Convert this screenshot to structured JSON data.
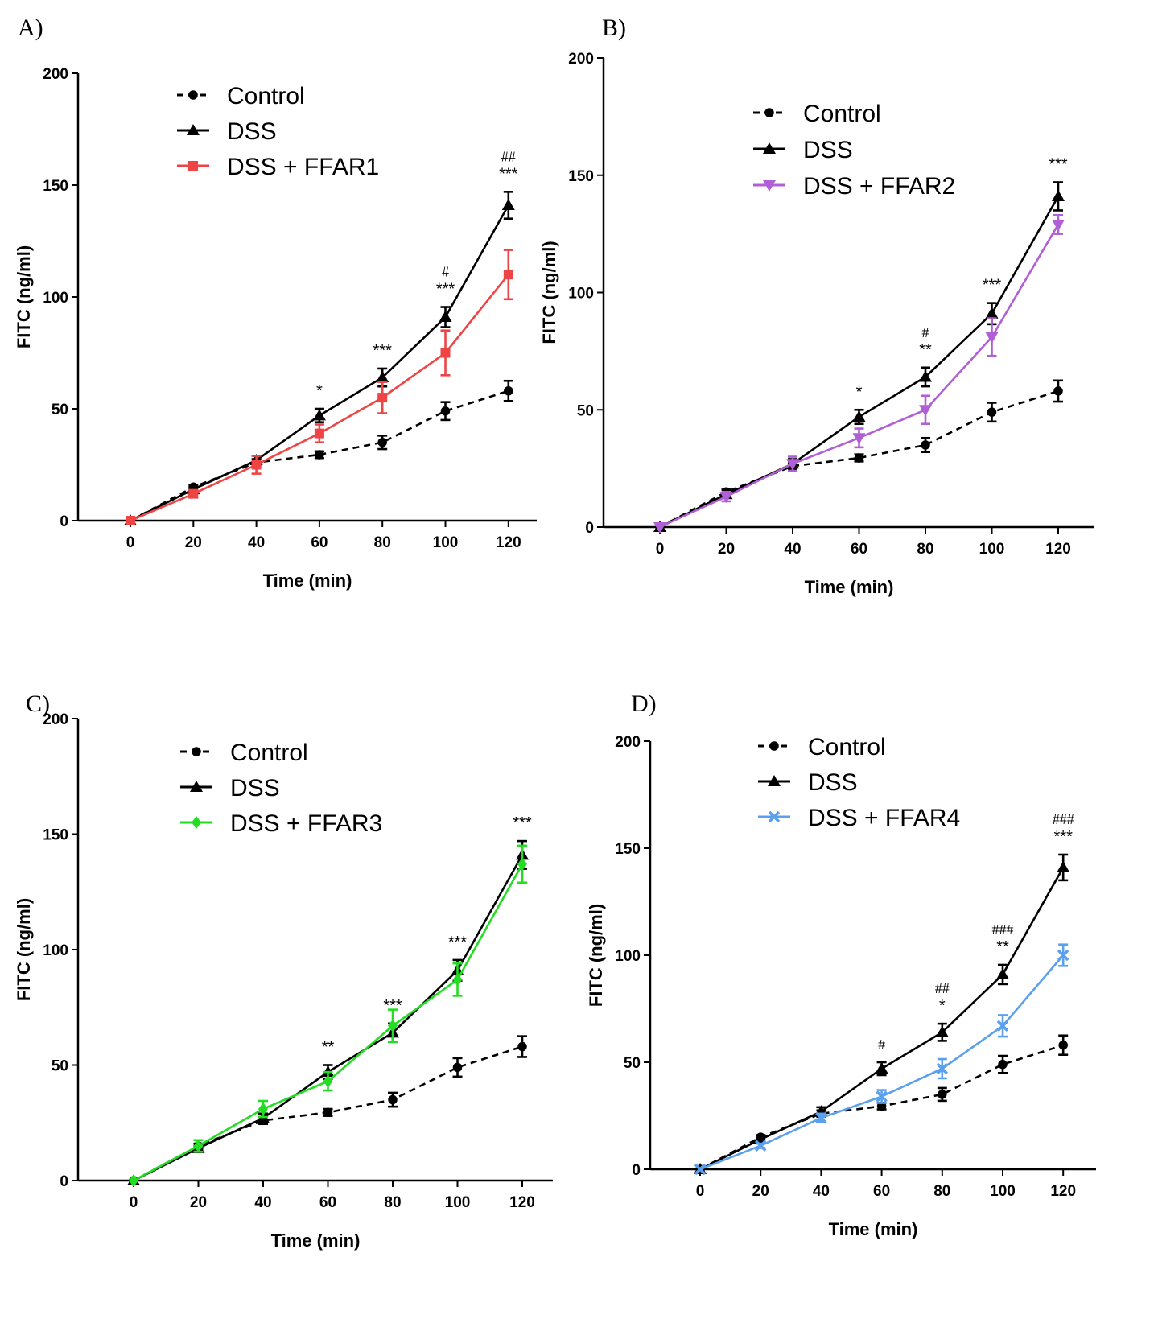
{
  "chart_data": [
    {
      "panel_label": "A)",
      "type": "line",
      "xlabel": "Time (min)",
      "ylabel": "FITC (ng/ml)",
      "x": [
        0,
        20,
        40,
        60,
        80,
        100,
        120
      ],
      "xticks": [
        "0",
        "20",
        "40",
        "60",
        "80",
        "100",
        "120"
      ],
      "ylim": [
        0,
        200
      ],
      "yticks": [
        "0",
        "50",
        "100",
        "150",
        "200"
      ],
      "series": [
        {
          "name": "Control",
          "color": "#000000",
          "marker": "circle",
          "dashed": true,
          "values": [
            0,
            15,
            26,
            29.5,
            35,
            49,
            58
          ],
          "errors": [
            0,
            1,
            1.5,
            1.5,
            3,
            4,
            4.5
          ]
        },
        {
          "name": "DSS",
          "color": "#000000",
          "marker": "triangle",
          "dashed": false,
          "values": [
            0,
            14,
            27,
            47,
            64,
            91,
            141
          ],
          "errors": [
            0,
            1,
            2,
            3,
            4,
            4.5,
            6
          ]
        },
        {
          "name": "DSS + FFAR1",
          "color": "#ee4444",
          "marker": "square",
          "dashed": false,
          "values": [
            0,
            12,
            25,
            39,
            55,
            75,
            110
          ],
          "errors": [
            0,
            1.5,
            4,
            4,
            7,
            10,
            11
          ]
        }
      ],
      "annotations": [
        {
          "x": 60,
          "stars": "*",
          "hash": ""
        },
        {
          "x": 80,
          "stars": "***",
          "hash": ""
        },
        {
          "x": 100,
          "stars": "***",
          "hash": "#"
        },
        {
          "x": 120,
          "stars": "***",
          "hash": "##"
        }
      ]
    },
    {
      "panel_label": "B)",
      "type": "line",
      "xlabel": "Time (min)",
      "ylabel": "FITC (ng/ml)",
      "x": [
        0,
        20,
        40,
        60,
        80,
        100,
        120
      ],
      "xticks": [
        "0",
        "20",
        "40",
        "60",
        "80",
        "100",
        "120"
      ],
      "ylim": [
        0,
        200
      ],
      "yticks": [
        "0",
        "50",
        "100",
        "150",
        "200"
      ],
      "series": [
        {
          "name": "Control",
          "color": "#000000",
          "marker": "circle",
          "dashed": true,
          "values": [
            0,
            15,
            26,
            29.5,
            35,
            49,
            58
          ],
          "errors": [
            0,
            1,
            1.5,
            1.5,
            3,
            4,
            4.5
          ]
        },
        {
          "name": "DSS",
          "color": "#000000",
          "marker": "triangle",
          "dashed": false,
          "values": [
            0,
            14,
            27,
            47,
            64,
            91,
            141
          ],
          "errors": [
            0,
            1,
            2,
            3,
            4,
            4.5,
            6
          ]
        },
        {
          "name": "DSS + FFAR2",
          "color": "#b05fd6",
          "marker": "triangle-down",
          "dashed": false,
          "values": [
            0,
            13,
            27,
            38,
            50,
            81,
            129
          ],
          "errors": [
            0,
            2,
            3,
            4,
            6,
            8,
            4
          ]
        }
      ],
      "annotations": [
        {
          "x": 60,
          "stars": "*",
          "hash": ""
        },
        {
          "x": 80,
          "stars": "**",
          "hash": "#"
        },
        {
          "x": 100,
          "stars": "***",
          "hash": ""
        },
        {
          "x": 120,
          "stars": "***",
          "hash": ""
        }
      ]
    },
    {
      "panel_label": "C)",
      "type": "line",
      "xlabel": "Time (min)",
      "ylabel": "FITC (ng/ml)",
      "x": [
        0,
        20,
        40,
        60,
        80,
        100,
        120
      ],
      "xticks": [
        "0",
        "20",
        "40",
        "60",
        "80",
        "100",
        "120"
      ],
      "ylim": [
        0,
        200
      ],
      "yticks": [
        "0",
        "50",
        "100",
        "150",
        "200"
      ],
      "series": [
        {
          "name": "Control",
          "color": "#000000",
          "marker": "circle",
          "dashed": true,
          "values": [
            0,
            15,
            26,
            29.5,
            35,
            49,
            58
          ],
          "errors": [
            0,
            1,
            1.5,
            1.5,
            3,
            4,
            4.5
          ]
        },
        {
          "name": "DSS",
          "color": "#000000",
          "marker": "triangle",
          "dashed": false,
          "values": [
            0,
            14,
            27,
            47,
            64,
            91,
            141
          ],
          "errors": [
            0,
            1,
            2,
            3,
            4,
            4.5,
            6
          ]
        },
        {
          "name": "DSS + FFAR3",
          "color": "#22dd22",
          "marker": "diamond",
          "dashed": false,
          "values": [
            0,
            15,
            31,
            43,
            67,
            87,
            137
          ],
          "errors": [
            0,
            2.5,
            3.5,
            4,
            7,
            7,
            8
          ]
        }
      ],
      "annotations": [
        {
          "x": 60,
          "stars": "**",
          "hash": ""
        },
        {
          "x": 80,
          "stars": "***",
          "hash": ""
        },
        {
          "x": 100,
          "stars": "***",
          "hash": ""
        },
        {
          "x": 120,
          "stars": "***",
          "hash": ""
        }
      ]
    },
    {
      "panel_label": "D)",
      "type": "line",
      "xlabel": "Time (min)",
      "ylabel": "FITC (ng/ml)",
      "x": [
        0,
        20,
        40,
        60,
        80,
        100,
        120
      ],
      "xticks": [
        "0",
        "20",
        "40",
        "60",
        "80",
        "100",
        "120"
      ],
      "ylim": [
        0,
        200
      ],
      "yticks": [
        "0",
        "50",
        "100",
        "150",
        "200"
      ],
      "series": [
        {
          "name": "Control",
          "color": "#000000",
          "marker": "circle",
          "dashed": true,
          "values": [
            0,
            15,
            26,
            29.5,
            35,
            49,
            58
          ],
          "errors": [
            0,
            1,
            1.5,
            1.5,
            3,
            4,
            4.5
          ]
        },
        {
          "name": "DSS",
          "color": "#000000",
          "marker": "triangle",
          "dashed": false,
          "values": [
            0,
            14,
            27,
            47,
            64,
            91,
            141
          ],
          "errors": [
            0,
            1,
            2,
            3,
            4,
            4.5,
            6
          ]
        },
        {
          "name": "DSS + FFAR4",
          "color": "#5aa0ee",
          "marker": "x",
          "dashed": false,
          "values": [
            0,
            11,
            24,
            34,
            47,
            67,
            100
          ],
          "errors": [
            0,
            1,
            2,
            3,
            4.5,
            5,
            5
          ]
        }
      ],
      "annotations": [
        {
          "x": 60,
          "stars": "",
          "hash": "#"
        },
        {
          "x": 80,
          "stars": "*",
          "hash": "##"
        },
        {
          "x": 100,
          "stars": "**",
          "hash": "###"
        },
        {
          "x": 120,
          "stars": "***",
          "hash": "###"
        }
      ]
    }
  ]
}
